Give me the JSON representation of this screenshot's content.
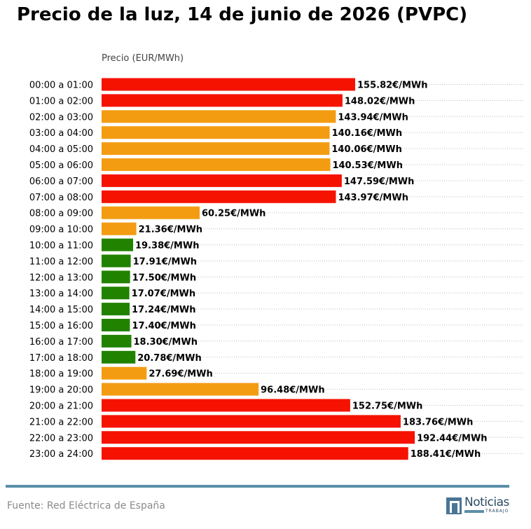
{
  "chart_data": {
    "type": "bar",
    "orientation": "horizontal",
    "title": "Precio de la luz, 14 de junio de 2026 (PVPC)",
    "xlabel": "Precio (EUR/MWh)",
    "value_suffix": "€/MWh",
    "xlim": [
      0,
      210
    ],
    "grid": "dotted horizontal lines",
    "categories": [
      "00:00 a 01:00",
      "01:00 a 02:00",
      "02:00 a 03:00",
      "03:00 a 04:00",
      "04:00 a 05:00",
      "05:00 a 06:00",
      "06:00 a 07:00",
      "07:00 a 08:00",
      "08:00 a 09:00",
      "09:00 a 10:00",
      "10:00 a 11:00",
      "11:00 a 12:00",
      "12:00 a 13:00",
      "13:00 a 14:00",
      "14:00 a 15:00",
      "15:00 a 16:00",
      "16:00 a 17:00",
      "17:00 a 18:00",
      "18:00 a 19:00",
      "19:00 a 20:00",
      "20:00 a 21:00",
      "21:00 a 22:00",
      "22:00 a 23:00",
      "23:00 a 24:00"
    ],
    "values": [
      155.82,
      148.02,
      143.94,
      140.16,
      140.06,
      140.53,
      147.59,
      143.97,
      60.25,
      21.36,
      19.38,
      17.91,
      17.5,
      17.07,
      17.24,
      17.4,
      18.3,
      20.78,
      27.69,
      96.48,
      152.75,
      183.76,
      192.44,
      188.41
    ],
    "bar_colors": [
      "#f51200",
      "#f51200",
      "#f39c12",
      "#f39c12",
      "#f39c12",
      "#f39c12",
      "#f51200",
      "#f51200",
      "#f39c12",
      "#f39c12",
      "#218200",
      "#218200",
      "#218200",
      "#218200",
      "#218200",
      "#218200",
      "#218200",
      "#218200",
      "#f39c12",
      "#f39c12",
      "#f51200",
      "#f51200",
      "#f51200",
      "#f51200"
    ]
  },
  "footer": {
    "source": "Fuente: Red Eléctrica de España",
    "logo_text": "Noticias",
    "logo_subtext": "TRABAJO"
  },
  "colors": {
    "high": "#f51200",
    "medium": "#f39c12",
    "low": "#218200",
    "accent": "#5b8fa8"
  }
}
